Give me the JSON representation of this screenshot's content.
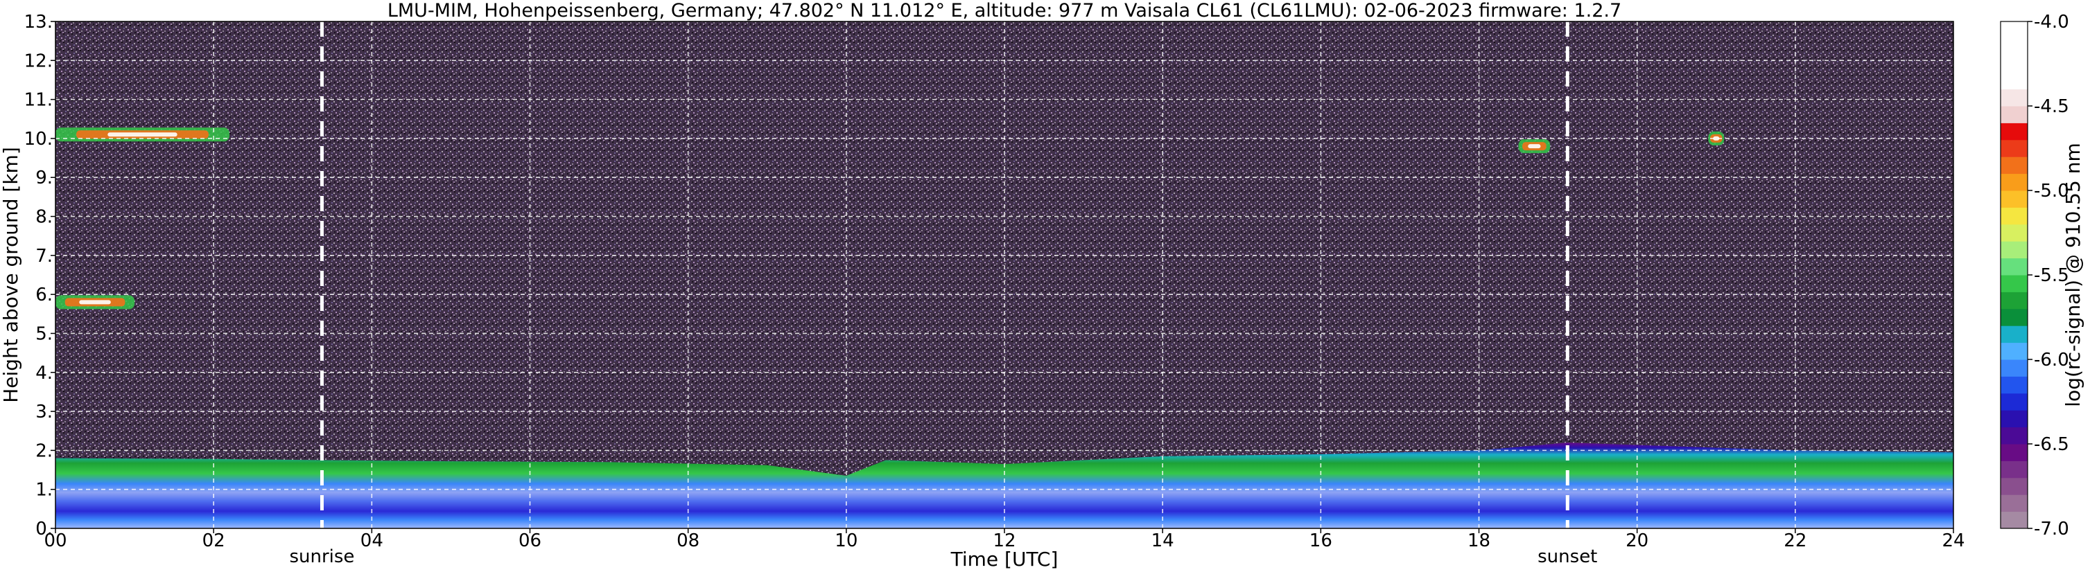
{
  "chart_data": {
    "type": "heatmap",
    "title": "LMU-MIM, Hohenpeissenberg, Germany; 47.802° N 11.012° E, altitude: 977 m    Vaisala CL61 (CL61LMU): 02-06-2023    firmware: 1.2.7",
    "xlabel": "Time [UTC]",
    "ylabel": "Height above ground [km]",
    "colorbar_label": "log(rc-signal) @ 910.55 nm",
    "x_range": [
      0,
      24
    ],
    "y_range": [
      0,
      13
    ],
    "x_ticks": [
      0,
      2,
      4,
      6,
      8,
      10,
      12,
      14,
      16,
      18,
      20,
      22,
      24
    ],
    "x_tick_labels": [
      "00",
      "02",
      "04",
      "06",
      "08",
      "10",
      "12",
      "14",
      "16",
      "18",
      "20",
      "22",
      "24"
    ],
    "y_ticks": [
      0,
      1,
      2,
      3,
      4,
      5,
      6,
      7,
      8,
      9,
      10,
      11,
      12,
      13
    ],
    "y_tick_labels": [
      "0.",
      "1.",
      "2.",
      "3.",
      "4.",
      "5.",
      "6.",
      "7.",
      "8.",
      "9.",
      "10.",
      "11.",
      "12.",
      "13."
    ],
    "grid": true,
    "colorbar_range": [
      -7.0,
      -4.0
    ],
    "colorbar_ticks": [
      -7.0,
      -6.5,
      -6.0,
      -5.5,
      -5.0,
      -4.5,
      -4.0
    ],
    "colorbar_tick_labels": [
      "-7.0",
      "-6.5",
      "-6.0",
      "-5.5",
      "-5.0",
      "-4.5",
      "-4.0"
    ],
    "events": [
      {
        "label": "sunrise",
        "x": 3.37
      },
      {
        "label": "sunset",
        "x": 19.12
      }
    ],
    "boundary_layer_top_km": [
      [
        0,
        1.8
      ],
      [
        2,
        1.78
      ],
      [
        3.37,
        1.75
      ],
      [
        5,
        1.72
      ],
      [
        7,
        1.7
      ],
      [
        9,
        1.62
      ],
      [
        10,
        1.35
      ],
      [
        10.5,
        1.75
      ],
      [
        12,
        1.65
      ],
      [
        14,
        1.85
      ],
      [
        16,
        1.9
      ],
      [
        18,
        2.0
      ],
      [
        19.12,
        2.2
      ],
      [
        22,
        2.0
      ],
      [
        24,
        1.95
      ]
    ],
    "cloud_features": [
      {
        "t_start": 0.0,
        "t_end": 2.2,
        "h_km": 10.1
      },
      {
        "t_start": 0.0,
        "t_end": 1.0,
        "h_km": 5.8
      },
      {
        "t_start": 18.5,
        "t_end": 18.9,
        "h_km": 9.8
      },
      {
        "t_start": 20.9,
        "t_end": 21.1,
        "h_km": 10.0
      }
    ]
  },
  "colors": {
    "background_noise": "#3f2f48",
    "gridline": "#ffffff",
    "event_line": "#ffffff"
  },
  "colormap": [
    "#a58aa3",
    "#9a6f98",
    "#8a4f8e",
    "#79308a",
    "#680c85",
    "#4b0a96",
    "#2a10b0",
    "#1c2ad6",
    "#2255ee",
    "#3a86fb",
    "#4fb0ff",
    "#19b0c9",
    "#0a8f3a",
    "#1da236",
    "#35c74a",
    "#66e07d",
    "#a8ee7a",
    "#d8f060",
    "#f5e640",
    "#fcc028",
    "#f99d1a",
    "#f2711a",
    "#ec3b19",
    "#e60b0b",
    "#f0d0d0",
    "#f6e6e6",
    "#ffffff",
    "#ffffff",
    "#ffffff",
    "#ffffff"
  ]
}
